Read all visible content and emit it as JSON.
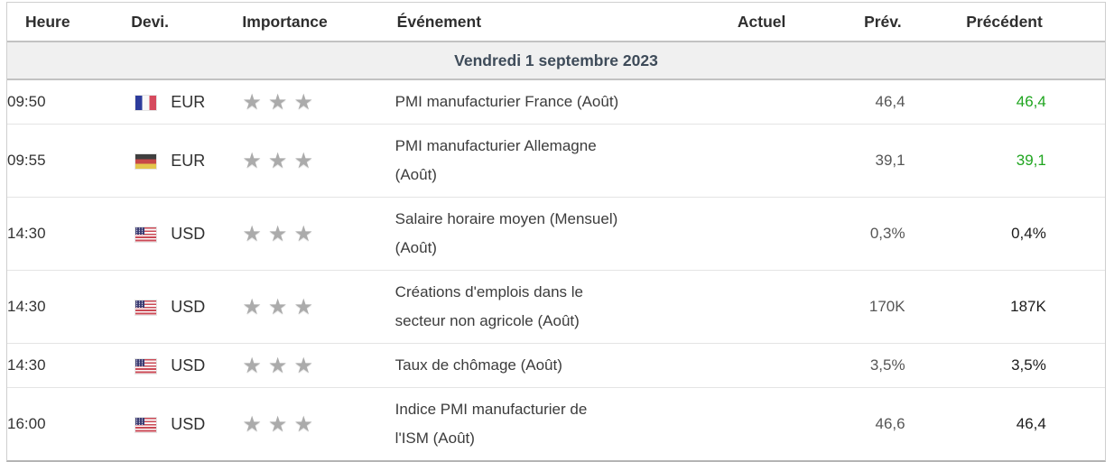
{
  "table": {
    "columns": [
      "Heure",
      "Devi.",
      "Importance",
      "Événement",
      "Actuel",
      "Prév.",
      "Précédent"
    ],
    "date_header": "Vendredi 1 septembre 2023",
    "star_icon": "★",
    "colors": {
      "previous_green": "#1fa51f",
      "date_row_bg": "#f0f0f0",
      "date_row_text": "#3e4b59",
      "star_gray": "#ababab"
    },
    "rows": [
      {
        "time": "09:50",
        "flag": "france",
        "currency": "EUR",
        "importance": 3,
        "event": "PMI manufacturier France (Août)",
        "event_lines": [
          "PMI manufacturier France (Août)"
        ],
        "actual": "",
        "forecast": "46,4",
        "previous": "46,4",
        "previous_color": "green"
      },
      {
        "time": "09:55",
        "flag": "germany",
        "currency": "EUR",
        "importance": 3,
        "event": "PMI manufacturier Allemagne (Août)",
        "event_lines": [
          "PMI manufacturier Allemagne",
          "(Août)"
        ],
        "actual": "",
        "forecast": "39,1",
        "previous": "39,1",
        "previous_color": "green"
      },
      {
        "time": "14:30",
        "flag": "usa",
        "currency": "USD",
        "importance": 3,
        "event": "Salaire horaire moyen (Mensuel) (Août)",
        "event_lines": [
          "Salaire horaire moyen (Mensuel)",
          "(Août)"
        ],
        "actual": "",
        "forecast": "0,3%",
        "previous": "0,4%",
        "previous_color": "default"
      },
      {
        "time": "14:30",
        "flag": "usa",
        "currency": "USD",
        "importance": 3,
        "event": "Créations d'emplois dans le secteur non agricole (Août)",
        "event_lines": [
          "Créations d'emplois dans le",
          "secteur non agricole (Août)"
        ],
        "actual": "",
        "forecast": "170K",
        "previous": "187K",
        "previous_color": "default"
      },
      {
        "time": "14:30",
        "flag": "usa",
        "currency": "USD",
        "importance": 3,
        "event": "Taux de chômage (Août)",
        "event_lines": [
          "Taux de chômage (Août)"
        ],
        "actual": "",
        "forecast": "3,5%",
        "previous": "3,5%",
        "previous_color": "default"
      },
      {
        "time": "16:00",
        "flag": "usa",
        "currency": "USD",
        "importance": 3,
        "event": "Indice PMI manufacturier de l'ISM (Août)",
        "event_lines": [
          "Indice PMI manufacturier de",
          "l'ISM (Août)"
        ],
        "actual": "",
        "forecast": "46,6",
        "previous": "46,4",
        "previous_color": "default"
      }
    ]
  }
}
